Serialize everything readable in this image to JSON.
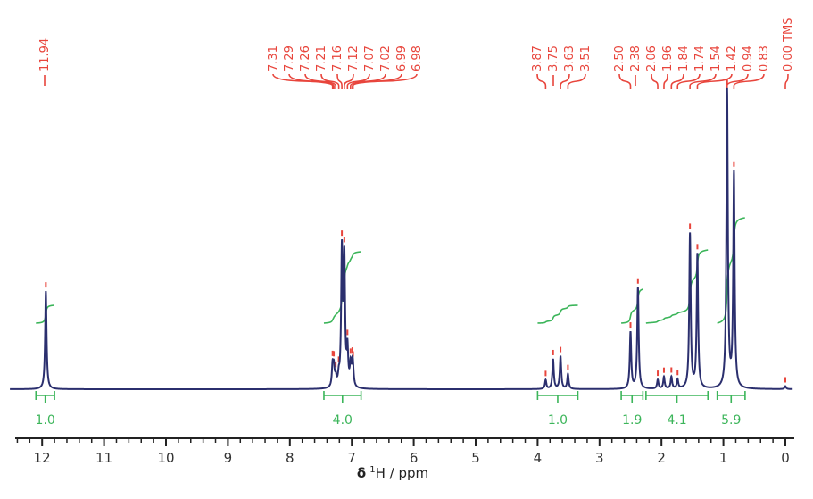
{
  "chart_data": {
    "type": "line",
    "title": "",
    "xlabel_symbol": "δ",
    "xlabel_sup": "1",
    "xlabel_rest": "H / ppm",
    "xlim": [
      12.5,
      -0.1
    ],
    "x_reversed": true,
    "x_ticks": [
      "12",
      "11",
      "10",
      "9",
      "8",
      "7",
      "6",
      "5",
      "4",
      "3",
      "2",
      "1",
      "0"
    ],
    "x_tick_values": [
      12,
      11,
      10,
      9,
      8,
      7,
      6,
      5,
      4,
      3,
      2,
      1,
      0
    ],
    "minor_tick_step": 0.2,
    "peaks": [
      {
        "shift": 11.94,
        "label": "11.94",
        "intensity": 0.33
      },
      {
        "shift": 7.31,
        "label": "7.31",
        "intensity": 0.07
      },
      {
        "shift": 7.29,
        "label": "7.29",
        "intensity": 0.06
      },
      {
        "shift": 7.26,
        "label": "7.26",
        "intensity": 0.03
      },
      {
        "shift": 7.21,
        "label": "7.21",
        "intensity": 0.03
      },
      {
        "shift": 7.16,
        "label": "7.16",
        "intensity": 0.45
      },
      {
        "shift": 7.12,
        "label": "7.12",
        "intensity": 0.42
      },
      {
        "shift": 7.07,
        "label": "7.07",
        "intensity": 0.12
      },
      {
        "shift": 7.02,
        "label": "7.02",
        "intensity": 0.07
      },
      {
        "shift": 6.99,
        "label": "6.99",
        "intensity": 0.06
      },
      {
        "shift": 6.98,
        "label": "6.98",
        "intensity": 0.04
      },
      {
        "shift": 3.87,
        "label": "3.87",
        "intensity": 0.03
      },
      {
        "shift": 3.75,
        "label": "3.75",
        "intensity": 0.1
      },
      {
        "shift": 3.63,
        "label": "3.63",
        "intensity": 0.11
      },
      {
        "shift": 3.51,
        "label": "3.51",
        "intensity": 0.05
      },
      {
        "shift": 2.5,
        "label": "2.50",
        "intensity": 0.19
      },
      {
        "shift": 2.38,
        "label": "2.38",
        "intensity": 0.34
      },
      {
        "shift": 2.06,
        "label": "2.06",
        "intensity": 0.03
      },
      {
        "shift": 1.96,
        "label": "1.96",
        "intensity": 0.04
      },
      {
        "shift": 1.84,
        "label": "1.84",
        "intensity": 0.04
      },
      {
        "shift": 1.74,
        "label": "1.74",
        "intensity": 0.03
      },
      {
        "shift": 1.54,
        "label": "1.54",
        "intensity": 0.52
      },
      {
        "shift": 1.42,
        "label": "1.42",
        "intensity": 0.45
      },
      {
        "shift": 0.94,
        "label": "0.94",
        "intensity": 1.0
      },
      {
        "shift": 0.83,
        "label": "0.83",
        "intensity": 0.72
      },
      {
        "shift": 0.0,
        "label": "0.00 TMS",
        "intensity": 0.01
      }
    ],
    "integrals": [
      {
        "from": 12.1,
        "to": 11.8,
        "value": "1.0"
      },
      {
        "from": 7.45,
        "to": 6.85,
        "value": "4.0"
      },
      {
        "from": 4.0,
        "to": 3.35,
        "value": "1.0"
      },
      {
        "from": 2.65,
        "to": 2.3,
        "value": "1.9"
      },
      {
        "from": 2.25,
        "to": 1.25,
        "value": "4.1"
      },
      {
        "from": 1.1,
        "to": 0.65,
        "value": "5.9"
      }
    ],
    "colors": {
      "spectrum": "#2b2f6e",
      "labels": "#e8453c",
      "integrals": "#3cb55a",
      "axis": "#222222"
    }
  }
}
